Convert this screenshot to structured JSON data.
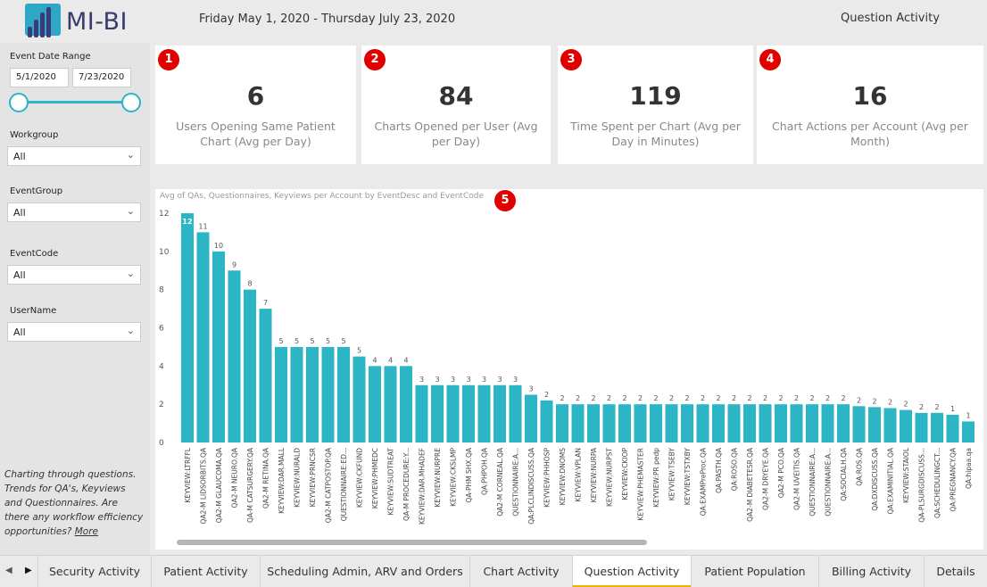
{
  "header": {
    "logo_text": "MI-BI",
    "date_range": "Friday May 1, 2020 - Thursday July 23, 2020",
    "page_heading": "Question Activity"
  },
  "sidebar": {
    "event_date_label": "Event Date Range",
    "start_date": "5/1/2020",
    "end_date": "7/23/2020",
    "filters": [
      {
        "label": "Workgroup",
        "value": "All"
      },
      {
        "label": "EventGroup",
        "value": "All"
      },
      {
        "label": "EventCode",
        "value": "All"
      },
      {
        "label": "UserName",
        "value": "All"
      }
    ],
    "note": {
      "lead": "Charting",
      "body": " through questions. Trends for QA's, Keyviews and Questionnaires. Are there any workflow efficiency opportunities? ",
      "link": "More"
    }
  },
  "cards": [
    {
      "badge": "1",
      "value": "6",
      "label": "Users Opening Same Patient Chart (Avg per Day)"
    },
    {
      "badge": "2",
      "value": "84",
      "label": "Charts Opened per User (Avg per Day)"
    },
    {
      "badge": "3",
      "value": "119",
      "label": "Time Spent per Chart (Avg per Day in Minutes)"
    },
    {
      "badge": "4",
      "value": "16",
      "label": "Chart Actions per Account (Avg per Month)"
    }
  ],
  "chart_badge": "5",
  "colors": {
    "bar": "#2bb5c5",
    "badge": "#e00000",
    "active_tab_underline": "#e8b800"
  },
  "chart_data": {
    "type": "bar",
    "title": "Avg of QAs, Questionnaires, Keyviews per Account by EventDesc and EventCode",
    "ylim": [
      0,
      12
    ],
    "yticks": [
      0,
      2,
      4,
      6,
      8,
      10,
      12
    ],
    "grid": false,
    "categories": [
      "KEYVIEW:LTRFFL",
      "QA2-M LIDSORBITS.QA",
      "QA2-M GLAUCOMA.QA",
      "QA2-M NEURO.QA",
      "QA-M CATSURGERY.QA",
      "QA2-M RETINA.QA",
      "KEYVIEW:DAR.MALL",
      "KEYVIEW:NURALD",
      "KEYVIEW:PRNCSR",
      "QA2-M CATPOSTOP.QA",
      "QUESTIONNAIRE:ED...",
      "KEYVIEW:CKFUND",
      "KEYVIEW:PHMEDC",
      "KEYVIEW:SUDTREAT",
      "QA-M PROCEDURE:Y...",
      "KEYVIEW:DAR.MHADEF",
      "KEYVIEW:NURPRE",
      "KEYVIEW:CKSLMP",
      "QA-PHM SHX.QA",
      "QA:PHPOH.QA",
      "QA2-M CORNEAL.QA",
      "QUESTIONNAIRE:A...",
      "QA:PLCLINDISCUSS.QA",
      "KEYVIEW:PHHOSP",
      "KEYVIEW:DNOMS",
      "KEYVIEW:VPLAN",
      "KEYVIEW:NURPA",
      "KEYVIEW:NURPST",
      "KEYVIEW:CKIOP",
      "KEYVIEW:PHEMASTER",
      "KEYVIEW:PR pedp",
      "KEYVIEW:TSEBY",
      "KEYVIEW:TSTXBY",
      "QA:EXAMPreProc.QA",
      "QA:PASTH.QA",
      "QA:ROSO.QA",
      "QA2-M DIABETESR.QA",
      "QA2-M DRYEYE.QA",
      "QA2-M PCO.QA",
      "QA2-M UVEITIS.QA",
      "QUESTIONNAIRE:A...",
      "QUESTIONNAIRE:A...",
      "QA:SOCIALH.QA",
      "QA:ROS.QA",
      "QA:DXDISCUSS.QA",
      "QA:EXAMINITIAL.QA",
      "KEYVIEW:STAIOL",
      "QA-PLSURGDISCUSS...",
      "QA:SCHEDULINGCT...",
      "QA:PREGNANCY.QA",
      "QA:hipaa.qa"
    ],
    "values": [
      12,
      11,
      10,
      9,
      8,
      7,
      5,
      5,
      5,
      5,
      5,
      4.5,
      4,
      4,
      4,
      3,
      3,
      3,
      3,
      3,
      3,
      3,
      2.5,
      2.2,
      2,
      2,
      2,
      2,
      2,
      2,
      2,
      2,
      2,
      2,
      2,
      2,
      2,
      2,
      2,
      2,
      2,
      2,
      2,
      1.9,
      1.85,
      1.8,
      1.7,
      1.55,
      1.55,
      1.45,
      1.1
    ],
    "data_labels": [
      "12",
      "11",
      "10",
      "9",
      "8",
      "7",
      "5",
      "5",
      "5",
      "5",
      "5",
      "5",
      "4",
      "4",
      "4",
      "3",
      "3",
      "3",
      "3",
      "3",
      "3",
      "3",
      "3",
      "2",
      "2",
      "2",
      "2",
      "2",
      "2",
      "2",
      "2",
      "2",
      "2",
      "2",
      "2",
      "2",
      "2",
      "2",
      "2",
      "2",
      "2",
      "2",
      "2",
      "2",
      "2",
      "2",
      "2",
      "2",
      "2",
      "1",
      "1"
    ]
  },
  "tabs": {
    "nav_prev": "◀",
    "nav_next": "▶",
    "items": [
      {
        "label": "Security Activity",
        "active": false
      },
      {
        "label": "Patient Activity",
        "active": false
      },
      {
        "label": "Scheduling Admin, ARV and Orders",
        "active": false
      },
      {
        "label": "Chart Activity",
        "active": false
      },
      {
        "label": "Question Activity",
        "active": true
      },
      {
        "label": "Patient Population",
        "active": false
      },
      {
        "label": "Billing Activity",
        "active": false
      },
      {
        "label": "Details",
        "active": false
      }
    ]
  }
}
